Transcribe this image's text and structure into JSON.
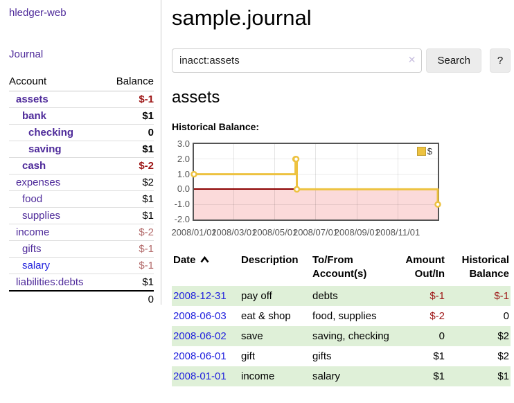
{
  "sidebar": {
    "app_title": "hledger-web",
    "journal_label": "Journal",
    "table": {
      "account_header": "Account",
      "balance_header": "Balance"
    },
    "accounts": [
      {
        "name": "assets",
        "balance": "$-1"
      },
      {
        "name": "bank",
        "balance": "$1"
      },
      {
        "name": "checking",
        "balance": "0"
      },
      {
        "name": "saving",
        "balance": "$1"
      },
      {
        "name": "cash",
        "balance": "$-2"
      },
      {
        "name": "expenses",
        "balance": "$2"
      },
      {
        "name": "food",
        "balance": "$1"
      },
      {
        "name": "supplies",
        "balance": "$1"
      },
      {
        "name": "income",
        "balance": "$-2"
      },
      {
        "name": "gifts",
        "balance": "$-1"
      },
      {
        "name": "salary",
        "balance": "$-1"
      },
      {
        "name": "liabilities:debts",
        "balance": "$1"
      }
    ],
    "total": "0"
  },
  "header": {
    "title": "sample.journal"
  },
  "search": {
    "value": "inacct:assets",
    "clear_icon": "✕",
    "button_label": "Search",
    "help_label": "?"
  },
  "account_page": {
    "heading": "assets",
    "chart_label": "Historical Balance:"
  },
  "chart_data": {
    "type": "line",
    "title": "Historical Balance",
    "step": true,
    "series": [
      {
        "name": "$",
        "points": [
          [
            "2008-01-01",
            1
          ],
          [
            "2008-06-01",
            2
          ],
          [
            "2008-06-02",
            2
          ],
          [
            "2008-06-03",
            0
          ],
          [
            "2008-12-31",
            -1
          ]
        ]
      }
    ],
    "x_range": [
      "2008-01-01",
      "2008-12-31"
    ],
    "ylim": [
      -2,
      3
    ],
    "y_ticks": [
      "3.0",
      "2.0",
      "1.0",
      "0.0",
      "-1.0",
      "-2.0"
    ],
    "x_ticks": [
      "2008/01/01",
      "2008/03/01",
      "2008/05/01",
      "2008/07/01",
      "2008/09/01",
      "2008/11/01"
    ],
    "legend": {
      "label": "$",
      "position": "top-right"
    },
    "colors": {
      "line": "#edc240",
      "negative_region": "#fbdada",
      "zero_line": "#8b0000",
      "border": "#545454"
    },
    "grid": true
  },
  "transactions": {
    "columns": {
      "date": "Date",
      "description": "Description",
      "accounts": "To/From Account(s)",
      "amount": "Amount Out/In",
      "balance": "Historical Balance"
    },
    "rows": [
      {
        "date": "2008-12-31",
        "description": "pay off",
        "accounts": "debts",
        "amount": "$-1",
        "balance": "$-1"
      },
      {
        "date": "2008-06-03",
        "description": "eat & shop",
        "accounts": "food, supplies",
        "amount": "$-2",
        "balance": "0"
      },
      {
        "date": "2008-06-02",
        "description": "save",
        "accounts": "saving, checking",
        "amount": "0",
        "balance": "$2"
      },
      {
        "date": "2008-06-01",
        "description": "gift",
        "accounts": "gifts",
        "amount": "$1",
        "balance": "$2"
      },
      {
        "date": "2008-01-01",
        "description": "income",
        "accounts": "salary",
        "amount": "$1",
        "balance": "$1"
      }
    ]
  }
}
